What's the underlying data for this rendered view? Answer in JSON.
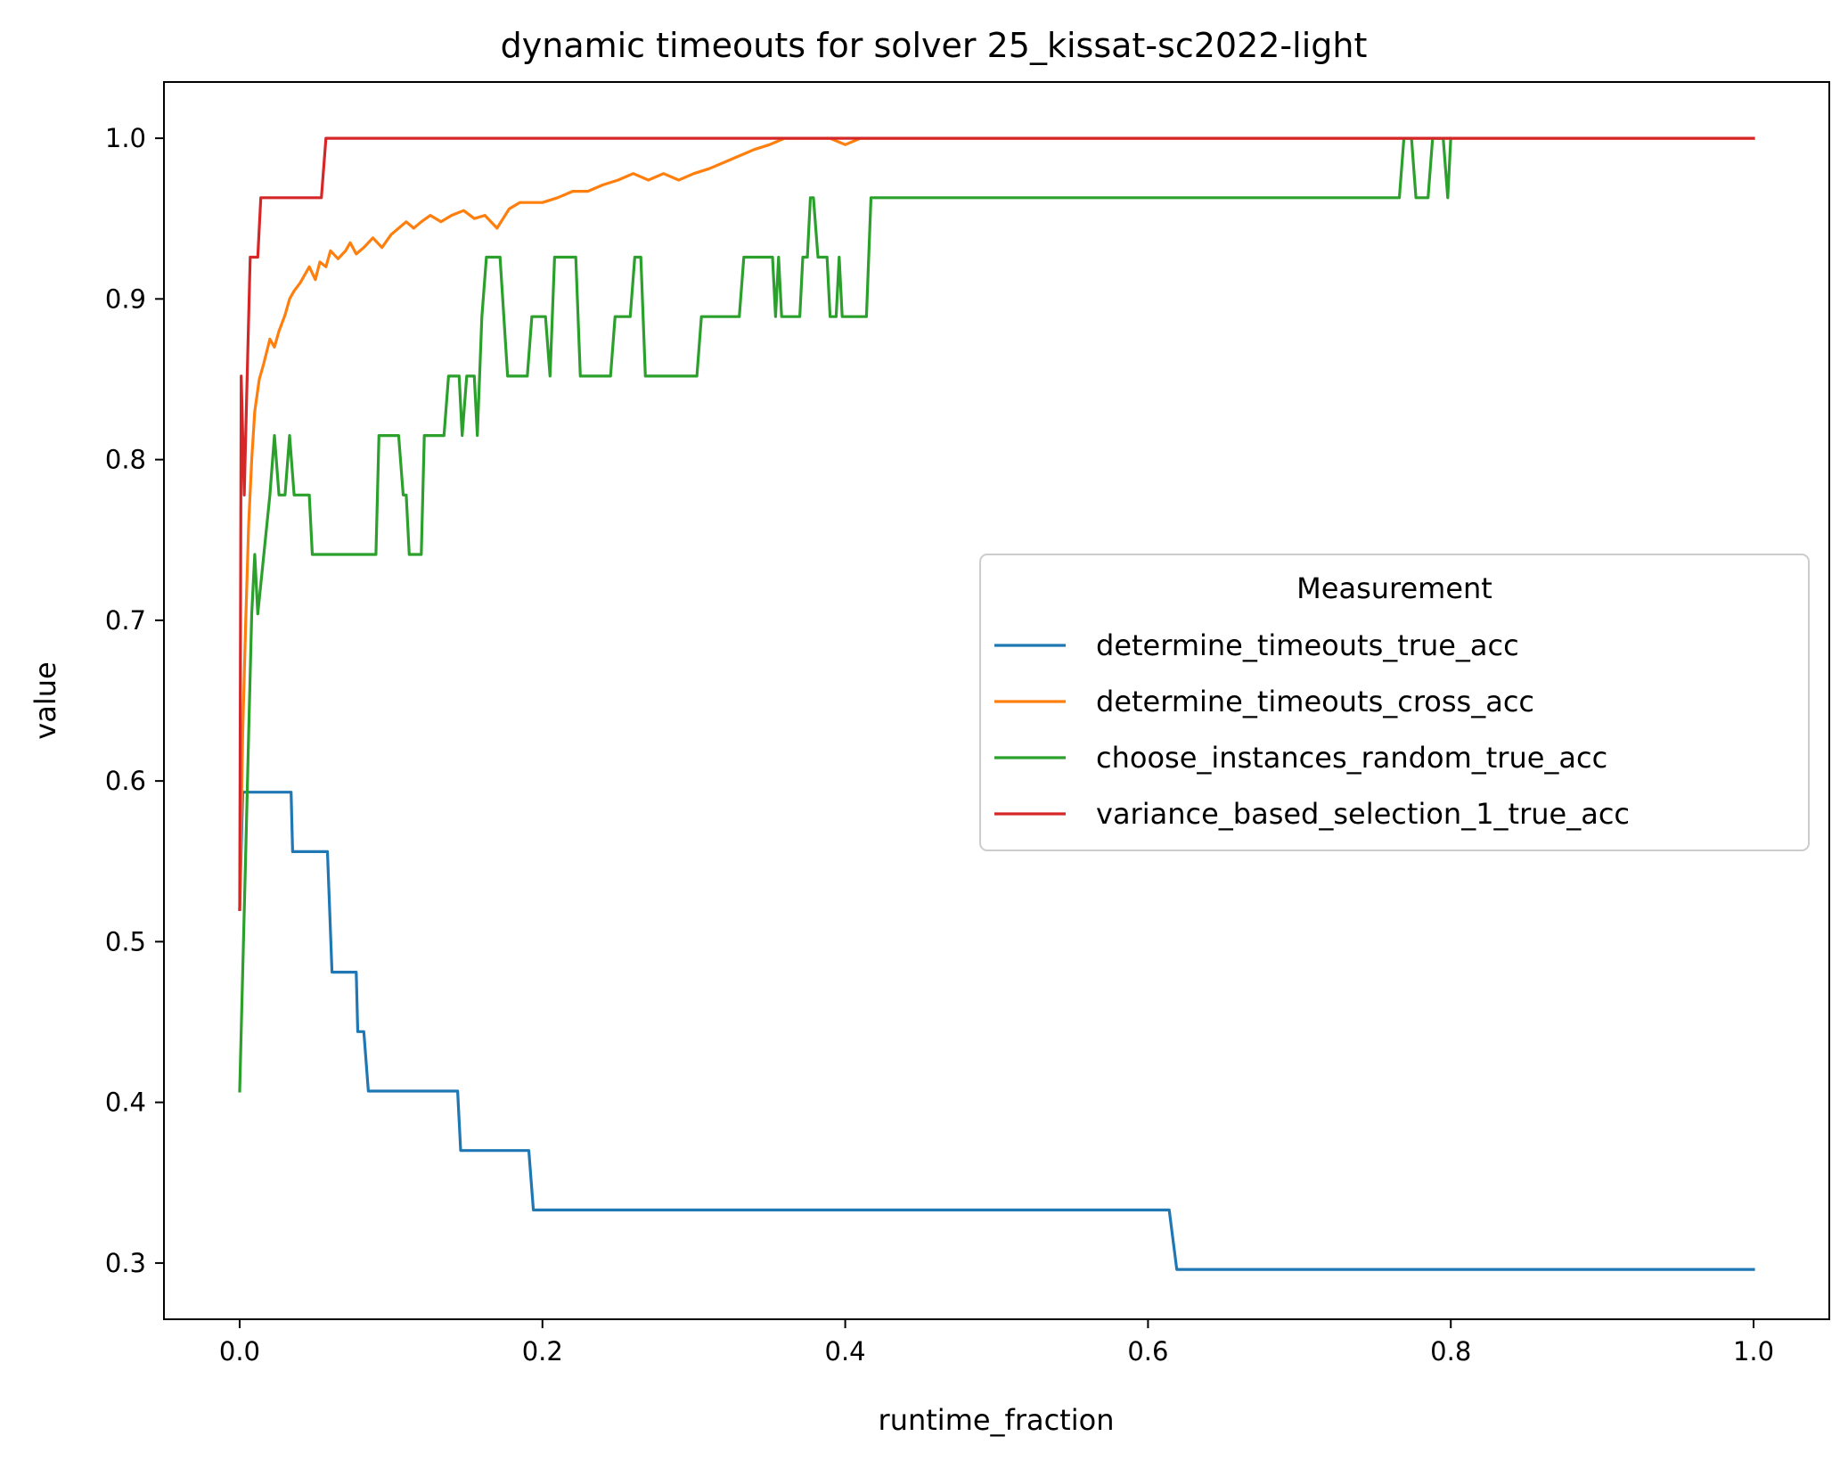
{
  "chart_data": {
    "type": "line",
    "title": "dynamic timeouts for solver 25_kissat-sc2022-light",
    "xlabel": "runtime_fraction",
    "ylabel": "value",
    "xlim": [
      -0.05,
      1.05
    ],
    "ylim": [
      0.265,
      1.035
    ],
    "x_ticks": [
      0.0,
      0.2,
      0.4,
      0.6,
      0.8,
      1.0
    ],
    "x_tick_labels": [
      "0.0",
      "0.2",
      "0.4",
      "0.6",
      "0.8",
      "1.0"
    ],
    "y_ticks": [
      0.3,
      0.4,
      0.5,
      0.6,
      0.7,
      0.8,
      0.9,
      1.0
    ],
    "y_tick_labels": [
      "0.3",
      "0.4",
      "0.5",
      "0.6",
      "0.7",
      "0.8",
      "0.9",
      "1.0"
    ],
    "grid": false,
    "legend": {
      "title": "Measurement",
      "position": "center-right"
    },
    "series": [
      {
        "name": "determine_timeouts_true_acc",
        "color": "#1f77b4",
        "points": [
          [
            0.0,
            0.52
          ],
          [
            0.002,
            0.593
          ],
          [
            0.034,
            0.593
          ],
          [
            0.035,
            0.556
          ],
          [
            0.058,
            0.556
          ],
          [
            0.061,
            0.481
          ],
          [
            0.077,
            0.481
          ],
          [
            0.078,
            0.444
          ],
          [
            0.082,
            0.444
          ],
          [
            0.085,
            0.407
          ],
          [
            0.144,
            0.407
          ],
          [
            0.146,
            0.37
          ],
          [
            0.191,
            0.37
          ],
          [
            0.194,
            0.333
          ],
          [
            0.614,
            0.333
          ],
          [
            0.619,
            0.296
          ],
          [
            1.0,
            0.296
          ]
        ]
      },
      {
        "name": "determine_timeouts_cross_acc",
        "color": "#ff7f0e",
        "points": [
          [
            0.0,
            0.52
          ],
          [
            0.002,
            0.63
          ],
          [
            0.004,
            0.7
          ],
          [
            0.006,
            0.76
          ],
          [
            0.008,
            0.8
          ],
          [
            0.01,
            0.83
          ],
          [
            0.013,
            0.85
          ],
          [
            0.016,
            0.86
          ],
          [
            0.02,
            0.875
          ],
          [
            0.023,
            0.87
          ],
          [
            0.026,
            0.88
          ],
          [
            0.03,
            0.89
          ],
          [
            0.033,
            0.9
          ],
          [
            0.036,
            0.905
          ],
          [
            0.04,
            0.91
          ],
          [
            0.043,
            0.915
          ],
          [
            0.046,
            0.92
          ],
          [
            0.05,
            0.912
          ],
          [
            0.053,
            0.923
          ],
          [
            0.057,
            0.92
          ],
          [
            0.06,
            0.93
          ],
          [
            0.065,
            0.925
          ],
          [
            0.07,
            0.93
          ],
          [
            0.073,
            0.935
          ],
          [
            0.077,
            0.928
          ],
          [
            0.082,
            0.932
          ],
          [
            0.088,
            0.938
          ],
          [
            0.094,
            0.932
          ],
          [
            0.1,
            0.94
          ],
          [
            0.105,
            0.944
          ],
          [
            0.11,
            0.948
          ],
          [
            0.115,
            0.944
          ],
          [
            0.12,
            0.948
          ],
          [
            0.126,
            0.952
          ],
          [
            0.133,
            0.948
          ],
          [
            0.14,
            0.952
          ],
          [
            0.148,
            0.955
          ],
          [
            0.155,
            0.95
          ],
          [
            0.162,
            0.952
          ],
          [
            0.17,
            0.944
          ],
          [
            0.178,
            0.956
          ],
          [
            0.185,
            0.96
          ],
          [
            0.2,
            0.96
          ],
          [
            0.21,
            0.963
          ],
          [
            0.22,
            0.967
          ],
          [
            0.23,
            0.967
          ],
          [
            0.24,
            0.971
          ],
          [
            0.25,
            0.974
          ],
          [
            0.26,
            0.978
          ],
          [
            0.27,
            0.974
          ],
          [
            0.28,
            0.978
          ],
          [
            0.29,
            0.974
          ],
          [
            0.3,
            0.978
          ],
          [
            0.31,
            0.981
          ],
          [
            0.32,
            0.985
          ],
          [
            0.33,
            0.989
          ],
          [
            0.34,
            0.993
          ],
          [
            0.35,
            0.996
          ],
          [
            0.36,
            1.0
          ],
          [
            0.39,
            1.0
          ],
          [
            0.4,
            0.996
          ],
          [
            0.41,
            1.0
          ],
          [
            1.0,
            1.0
          ]
        ]
      },
      {
        "name": "choose_instances_random_true_acc",
        "color": "#2ca02c",
        "points": [
          [
            0.0,
            0.407
          ],
          [
            0.004,
            0.556
          ],
          [
            0.006,
            0.63
          ],
          [
            0.008,
            0.704
          ],
          [
            0.01,
            0.741
          ],
          [
            0.012,
            0.704
          ],
          [
            0.016,
            0.741
          ],
          [
            0.02,
            0.778
          ],
          [
            0.023,
            0.815
          ],
          [
            0.026,
            0.778
          ],
          [
            0.03,
            0.778
          ],
          [
            0.033,
            0.815
          ],
          [
            0.036,
            0.778
          ],
          [
            0.046,
            0.778
          ],
          [
            0.048,
            0.741
          ],
          [
            0.09,
            0.741
          ],
          [
            0.092,
            0.815
          ],
          [
            0.105,
            0.815
          ],
          [
            0.108,
            0.778
          ],
          [
            0.11,
            0.778
          ],
          [
            0.112,
            0.741
          ],
          [
            0.12,
            0.741
          ],
          [
            0.122,
            0.815
          ],
          [
            0.135,
            0.815
          ],
          [
            0.138,
            0.852
          ],
          [
            0.145,
            0.852
          ],
          [
            0.147,
            0.815
          ],
          [
            0.15,
            0.852
          ],
          [
            0.155,
            0.852
          ],
          [
            0.157,
            0.815
          ],
          [
            0.16,
            0.889
          ],
          [
            0.163,
            0.926
          ],
          [
            0.172,
            0.926
          ],
          [
            0.177,
            0.852
          ],
          [
            0.19,
            0.852
          ],
          [
            0.193,
            0.889
          ],
          [
            0.202,
            0.889
          ],
          [
            0.205,
            0.852
          ],
          [
            0.208,
            0.926
          ],
          [
            0.222,
            0.926
          ],
          [
            0.225,
            0.852
          ],
          [
            0.245,
            0.852
          ],
          [
            0.248,
            0.889
          ],
          [
            0.258,
            0.889
          ],
          [
            0.261,
            0.926
          ],
          [
            0.265,
            0.926
          ],
          [
            0.268,
            0.852
          ],
          [
            0.302,
            0.852
          ],
          [
            0.305,
            0.889
          ],
          [
            0.33,
            0.889
          ],
          [
            0.333,
            0.926
          ],
          [
            0.352,
            0.926
          ],
          [
            0.354,
            0.889
          ],
          [
            0.356,
            0.926
          ],
          [
            0.358,
            0.889
          ],
          [
            0.37,
            0.889
          ],
          [
            0.372,
            0.926
          ],
          [
            0.375,
            0.926
          ],
          [
            0.377,
            0.963
          ],
          [
            0.379,
            0.963
          ],
          [
            0.382,
            0.926
          ],
          [
            0.388,
            0.926
          ],
          [
            0.39,
            0.889
          ],
          [
            0.394,
            0.889
          ],
          [
            0.396,
            0.926
          ],
          [
            0.398,
            0.889
          ],
          [
            0.414,
            0.889
          ],
          [
            0.417,
            0.963
          ],
          [
            0.766,
            0.963
          ],
          [
            0.769,
            1.0
          ],
          [
            0.774,
            1.0
          ],
          [
            0.777,
            0.963
          ],
          [
            0.785,
            0.963
          ],
          [
            0.788,
            1.0
          ],
          [
            0.795,
            1.0
          ],
          [
            0.798,
            0.963
          ],
          [
            0.8,
            1.0
          ]
        ]
      },
      {
        "name": "variance_based_selection_1_true_acc",
        "color": "#d62728",
        "points": [
          [
            0.0,
            0.52
          ],
          [
            0.001,
            0.852
          ],
          [
            0.003,
            0.778
          ],
          [
            0.005,
            0.852
          ],
          [
            0.007,
            0.926
          ],
          [
            0.012,
            0.926
          ],
          [
            0.014,
            0.963
          ],
          [
            0.054,
            0.963
          ],
          [
            0.057,
            1.0
          ],
          [
            1.0,
            1.0
          ]
        ]
      }
    ]
  }
}
